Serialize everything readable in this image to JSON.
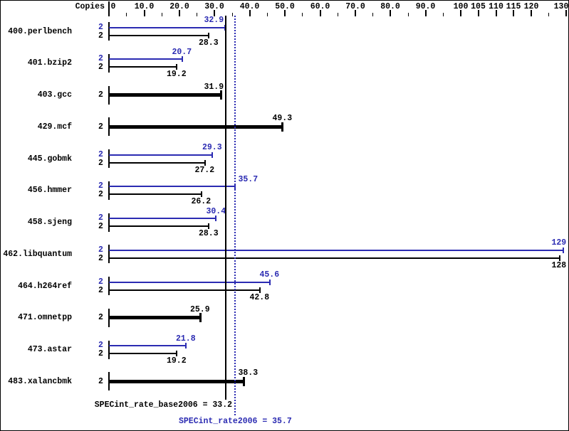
{
  "colors": {
    "peak_blue": "#2b2bb2",
    "base_black": "#000000",
    "background": "#ffffff"
  },
  "chart_data": {
    "type": "bar",
    "orientation": "horizontal",
    "copies_header": "Copies",
    "x_axis": {
      "range": [
        0,
        130
      ],
      "labeled_ticks": [
        {
          "value": 0,
          "label": "0"
        },
        {
          "value": 10,
          "label": "10.0"
        },
        {
          "value": 20,
          "label": "20.0"
        },
        {
          "value": 30,
          "label": "30.0"
        },
        {
          "value": 40,
          "label": "40.0"
        },
        {
          "value": 50,
          "label": "50.0"
        },
        {
          "value": 60,
          "label": "60.0"
        },
        {
          "value": 70,
          "label": "70.0"
        },
        {
          "value": 80,
          "label": "80.0"
        },
        {
          "value": 90,
          "label": "90.0"
        },
        {
          "value": 100,
          "label": "100"
        },
        {
          "value": 105,
          "label": "105"
        },
        {
          "value": 110,
          "label": "110"
        },
        {
          "value": 115,
          "label": "115"
        },
        {
          "value": 120,
          "label": "120"
        },
        {
          "value": 130,
          "label": "130"
        }
      ],
      "minor_ticks": [
        5,
        15,
        25,
        35,
        45,
        55,
        65,
        75,
        85,
        95,
        125
      ]
    },
    "benchmarks": [
      {
        "name": "400.perlbench",
        "peak": {
          "copies": "2",
          "value": 32.9,
          "label": "32.9"
        },
        "base": {
          "copies": "2",
          "value": 28.3,
          "label": "28.3"
        }
      },
      {
        "name": "401.bzip2",
        "peak": {
          "copies": "2",
          "value": 20.7,
          "label": "20.7"
        },
        "base": {
          "copies": "2",
          "value": 19.2,
          "label": "19.2"
        }
      },
      {
        "name": "403.gcc",
        "peak": null,
        "base": {
          "copies": "2",
          "value": 31.9,
          "label": "31.9"
        }
      },
      {
        "name": "429.mcf",
        "peak": null,
        "base": {
          "copies": "2",
          "value": 49.3,
          "label": "49.3"
        }
      },
      {
        "name": "445.gobmk",
        "peak": {
          "copies": "2",
          "value": 29.3,
          "label": "29.3"
        },
        "base": {
          "copies": "2",
          "value": 27.2,
          "label": "27.2"
        }
      },
      {
        "name": "456.hmmer",
        "peak": {
          "copies": "2",
          "value": 35.7,
          "label": "35.7"
        },
        "base": {
          "copies": "2",
          "value": 26.2,
          "label": "26.2"
        }
      },
      {
        "name": "458.sjeng",
        "peak": {
          "copies": "2",
          "value": 30.4,
          "label": "30.4"
        },
        "base": {
          "copies": "2",
          "value": 28.3,
          "label": "28.3"
        }
      },
      {
        "name": "462.libquantum",
        "peak": {
          "copies": "2",
          "value": 129,
          "label": "129"
        },
        "base": {
          "copies": "2",
          "value": 128,
          "label": "128"
        }
      },
      {
        "name": "464.h264ref",
        "peak": {
          "copies": "2",
          "value": 45.6,
          "label": "45.6"
        },
        "base": {
          "copies": "2",
          "value": 42.8,
          "label": "42.8"
        }
      },
      {
        "name": "471.omnetpp",
        "peak": null,
        "base": {
          "copies": "2",
          "value": 25.9,
          "label": "25.9"
        }
      },
      {
        "name": "473.astar",
        "peak": {
          "copies": "2",
          "value": 21.8,
          "label": "21.8"
        },
        "base": {
          "copies": "2",
          "value": 19.2,
          "label": "19.2"
        }
      },
      {
        "name": "483.xalancbmk",
        "peak": null,
        "base": {
          "copies": "2",
          "value": 38.3,
          "label": "38.3"
        }
      }
    ],
    "summary": {
      "base_text": "SPECint_rate_base2006 = 33.2",
      "base_value": 33.2,
      "peak_text": "SPECint_rate2006 = 35.7",
      "peak_value": 35.7
    }
  }
}
